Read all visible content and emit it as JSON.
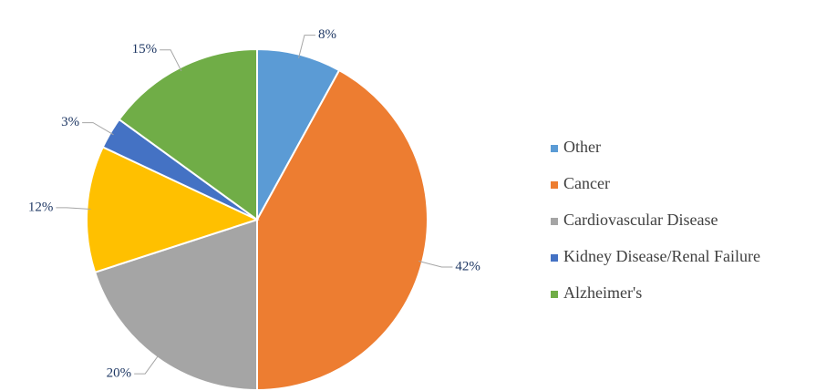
{
  "chart_data": {
    "type": "pie",
    "categories": [
      "Other",
      "Cancer",
      "Cardiovascular Disease",
      null,
      "Kidney Disease/Renal Failure",
      "Alzheimer's"
    ],
    "values": [
      8,
      42,
      20,
      12,
      3,
      15
    ],
    "value_labels": [
      "8%",
      "42%",
      "20%",
      "12%",
      "3%",
      "15%"
    ],
    "colors": [
      "#5b9bd5",
      "#ed7d31",
      "#a5a5a5",
      "#ffc000",
      "#4472c4",
      "#70ad47"
    ],
    "legend": "right"
  }
}
